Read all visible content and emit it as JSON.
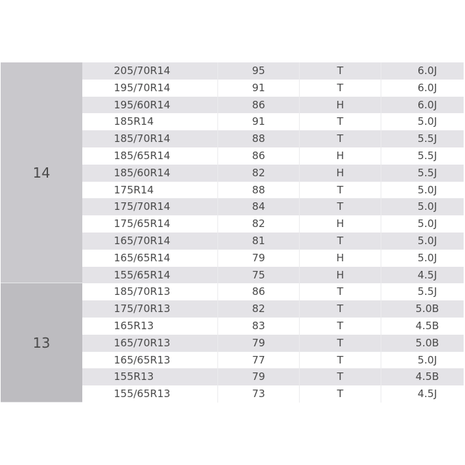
{
  "groups": [
    {
      "rim": "14",
      "rows": [
        [
          "205/70R14",
          "95",
          "T",
          "6.0J"
        ],
        [
          "195/70R14",
          "91",
          "T",
          "6.0J"
        ],
        [
          "195/60R14",
          "86",
          "H",
          "6.0J"
        ],
        [
          "185R14",
          "91",
          "T",
          "5.0J"
        ],
        [
          "185/70R14",
          "88",
          "T",
          "5.5J"
        ],
        [
          "185/65R14",
          "86",
          "H",
          "5.5J"
        ],
        [
          "185/60R14",
          "82",
          "H",
          "5.5J"
        ],
        [
          "175R14",
          "88",
          "T",
          "5.0J"
        ],
        [
          "175/70R14",
          "84",
          "T",
          "5.0J"
        ],
        [
          "175/65R14",
          "82",
          "H",
          "5.0J"
        ],
        [
          "165/70R14",
          "81",
          "T",
          "5.0J"
        ],
        [
          "165/65R14",
          "79",
          "H",
          "5.0J"
        ],
        [
          "155/65R14",
          "75",
          "H",
          "4.5J"
        ]
      ]
    },
    {
      "rim": "13",
      "rows": [
        [
          "185/70R13",
          "86",
          "T",
          "5.5J"
        ],
        [
          "175/70R13",
          "82",
          "T",
          "5.0B"
        ],
        [
          "165R13",
          "83",
          "T",
          "4.5B"
        ],
        [
          "165/70R13",
          "79",
          "T",
          "5.0B"
        ],
        [
          "165/65R13",
          "77",
          "T",
          "5.0J"
        ],
        [
          "155R13",
          "79",
          "T",
          "4.5B"
        ],
        [
          "155/65R13",
          "73",
          "T",
          "4.5J"
        ]
      ]
    }
  ]
}
